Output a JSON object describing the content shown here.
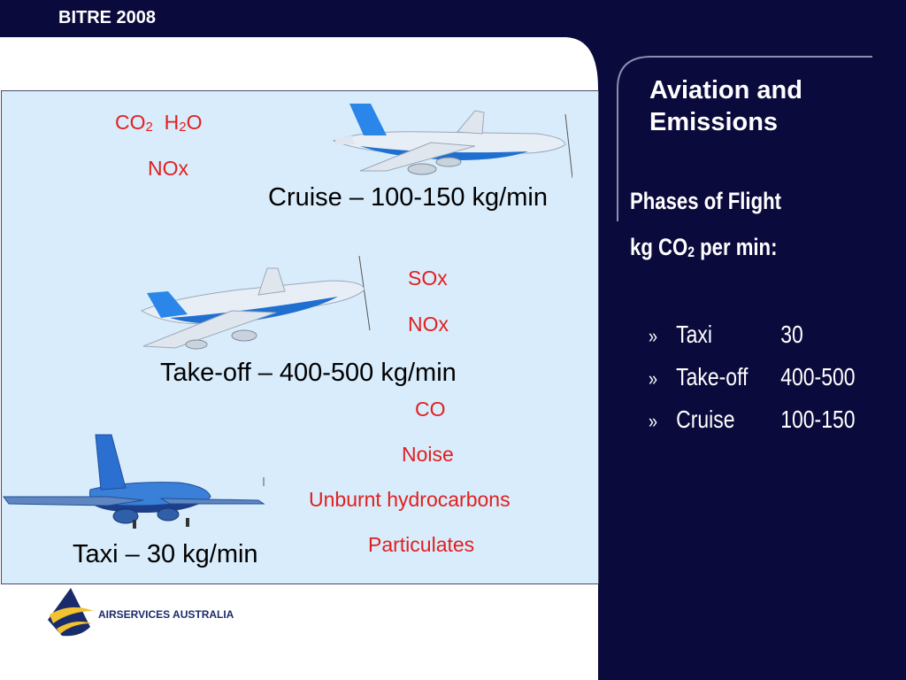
{
  "header": {
    "label": "BITRE 2008"
  },
  "title": {
    "line1": "Aviation and",
    "line2": "Emissions"
  },
  "phases": {
    "heading": "Phases of Flight",
    "subheading_prefix": "kg CO",
    "subheading_sub": "2",
    "subheading_suffix": " per min:",
    "bullet": "»",
    "items": [
      {
        "name": "Taxi",
        "value": "30"
      },
      {
        "name": "Take-off",
        "value": "400-500"
      },
      {
        "name": "Cruise",
        "value": "100-150"
      }
    ]
  },
  "emissions": {
    "cruise": {
      "co2_prefix": "CO",
      "co2_sub": "2",
      "h2o_prefix": "H",
      "h2o_sub": "2",
      "h2o_suffix": "O",
      "nox": "NOx"
    },
    "takeoff": {
      "sox": "SOx",
      "nox": "NOx"
    },
    "taxi": {
      "co": "CO",
      "noise": "Noise",
      "hydrocarbons": "Unburnt hydrocarbons",
      "particulates": "Particulates"
    }
  },
  "flight_labels": {
    "cruise": "Cruise – 100-150 kg/min",
    "takeoff": "Take-off – 400-500 kg/min",
    "taxi": "Taxi – 30 kg/min"
  },
  "logo": {
    "text": "AIRSERVICES AUSTRALIA"
  },
  "colors": {
    "navy": "#0b0a3c",
    "panel": "#d9ecfb",
    "red": "#e02020",
    "plane_blue": "#1e6fd0"
  }
}
